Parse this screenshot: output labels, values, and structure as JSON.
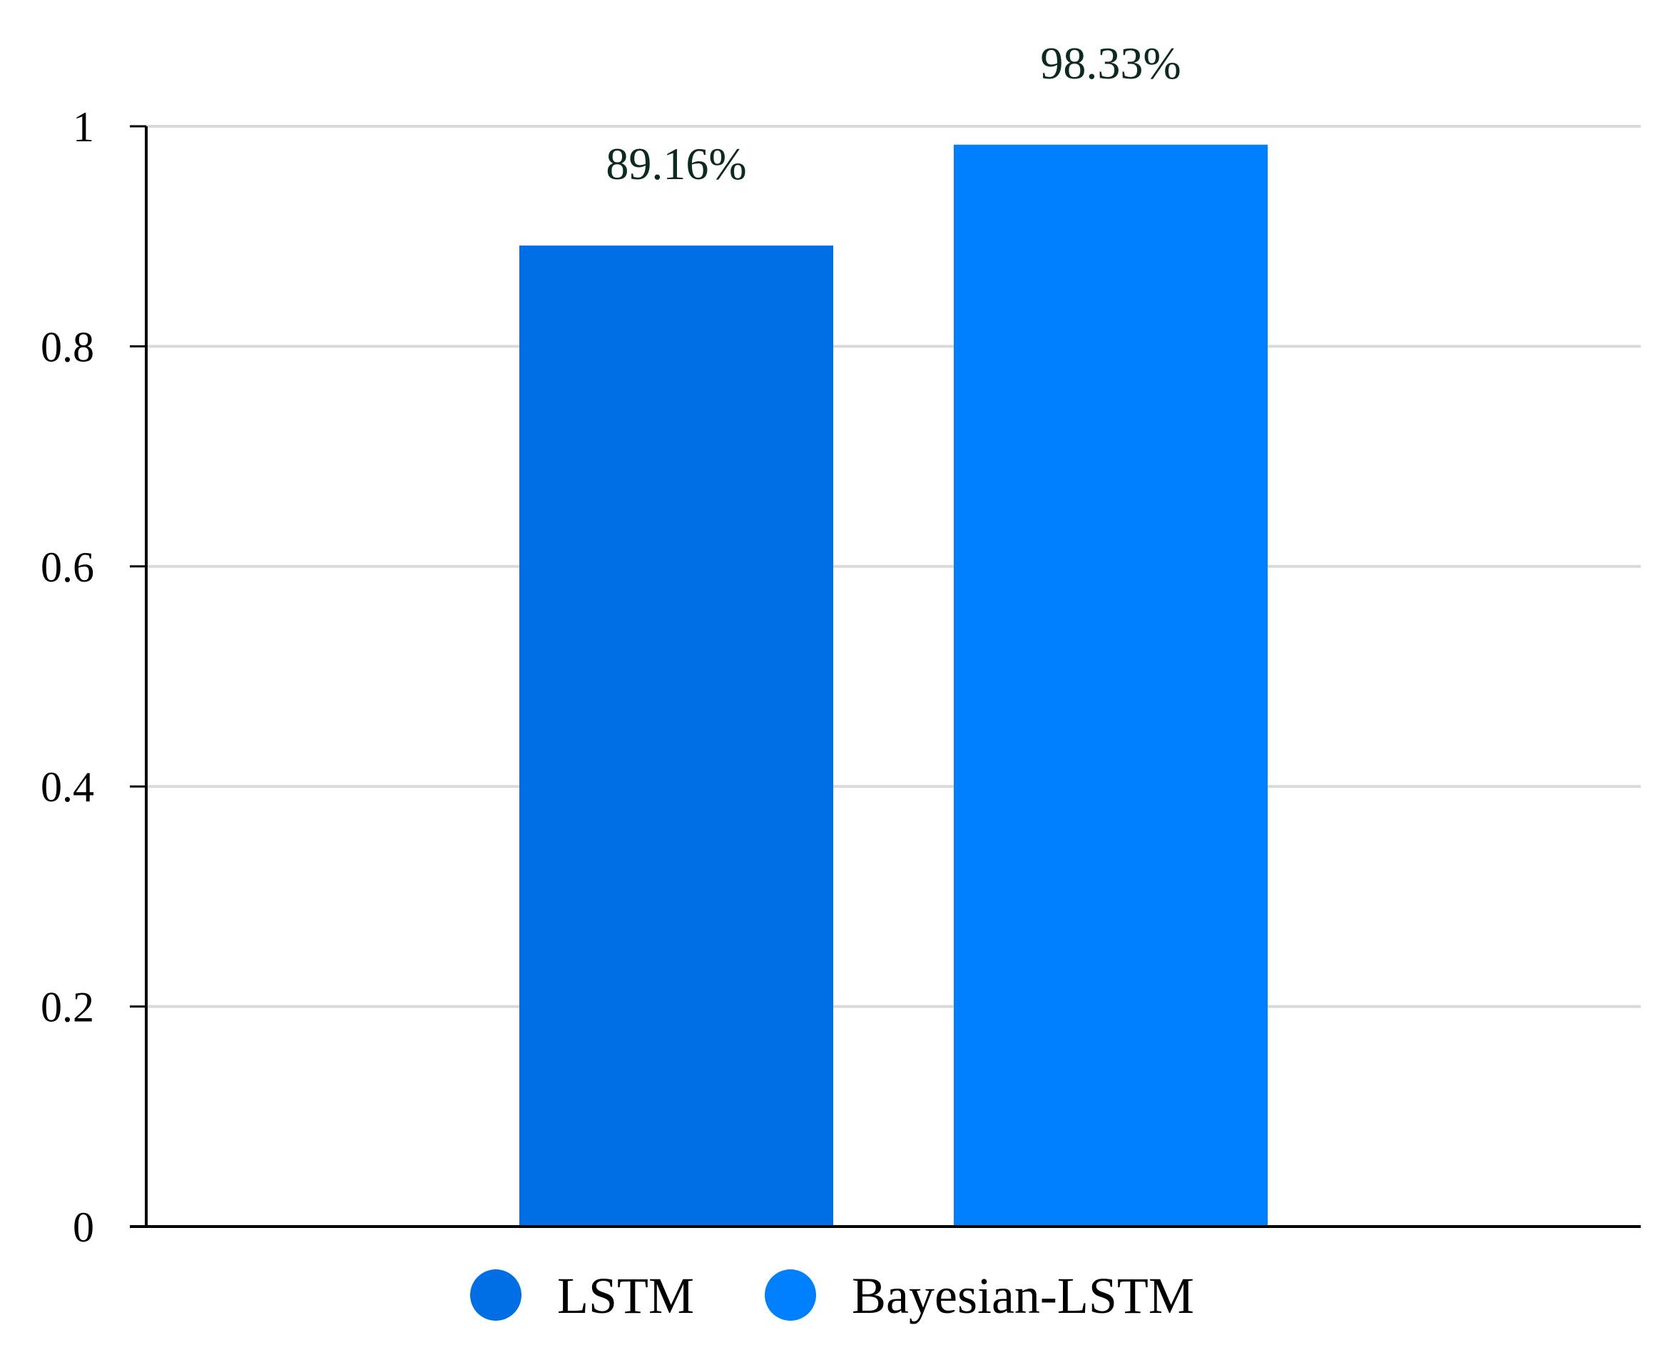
{
  "chart_data": {
    "type": "bar",
    "title": "",
    "xlabel": "",
    "ylabel": "",
    "ylim": [
      0,
      1
    ],
    "yticks": [
      0,
      0.2,
      0.4,
      0.6,
      0.8,
      1
    ],
    "ytick_labels": [
      "0",
      "0.2",
      "0.4",
      "0.6",
      "0.8",
      "1"
    ],
    "grid": true,
    "legend_position": "bottom",
    "series": [
      {
        "name": "LSTM",
        "value": 0.8916,
        "label": "89.16%",
        "color": "#006FE6"
      },
      {
        "name": "Bayesian-LSTM",
        "value": 0.9833,
        "label": "98.33%",
        "color": "#0080FF"
      }
    ]
  }
}
